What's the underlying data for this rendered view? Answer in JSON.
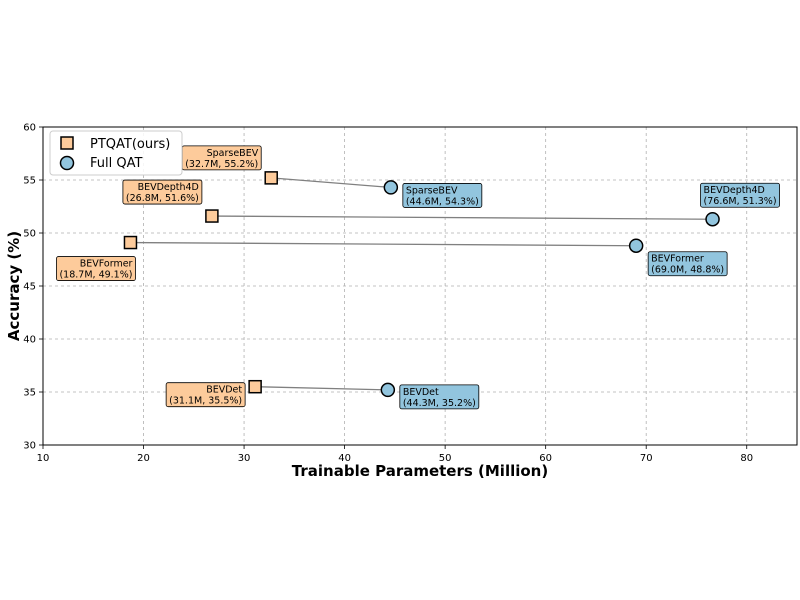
{
  "chart_data": {
    "type": "scatter",
    "xlabel": "Trainable Parameters (Million)",
    "ylabel": "Accuracy (%)",
    "xlim": [
      10,
      85
    ],
    "ylim": [
      30,
      60
    ],
    "xticks": [
      10,
      20,
      30,
      40,
      50,
      60,
      70,
      80
    ],
    "yticks": [
      30,
      35,
      40,
      45,
      50,
      55,
      60
    ],
    "grid": true,
    "legend_position": "top-left",
    "colors": {
      "ptqat": "#fdcb9b",
      "fullqat": "#92c5de",
      "connector": "#808080"
    },
    "series": [
      {
        "name": "PTQAT(ours)",
        "marker": "square",
        "points": [
          {
            "model": "SparseBEV",
            "x": 32.7,
            "y": 55.2,
            "label": "(32.7M, 55.2%)"
          },
          {
            "model": "BEVDepth4D",
            "x": 26.8,
            "y": 51.6,
            "label": "(26.8M, 51.6%)"
          },
          {
            "model": "BEVFormer",
            "x": 18.7,
            "y": 49.1,
            "label": "(18.7M, 49.1%)"
          },
          {
            "model": "BEVDet",
            "x": 31.1,
            "y": 35.5,
            "label": "(31.1M, 35.5%)"
          }
        ]
      },
      {
        "name": "Full QAT",
        "marker": "circle",
        "points": [
          {
            "model": "SparseBEV",
            "x": 44.6,
            "y": 54.3,
            "label": "(44.6M, 54.3%)"
          },
          {
            "model": "BEVDepth4D",
            "x": 76.6,
            "y": 51.3,
            "label": "(76.6M, 51.3%)"
          },
          {
            "model": "BEVFormer",
            "x": 69.0,
            "y": 48.8,
            "label": "(69.0M, 48.8%)"
          },
          {
            "model": "BEVDet",
            "x": 44.3,
            "y": 35.2,
            "label": "(44.3M, 35.2%)"
          }
        ]
      }
    ]
  }
}
